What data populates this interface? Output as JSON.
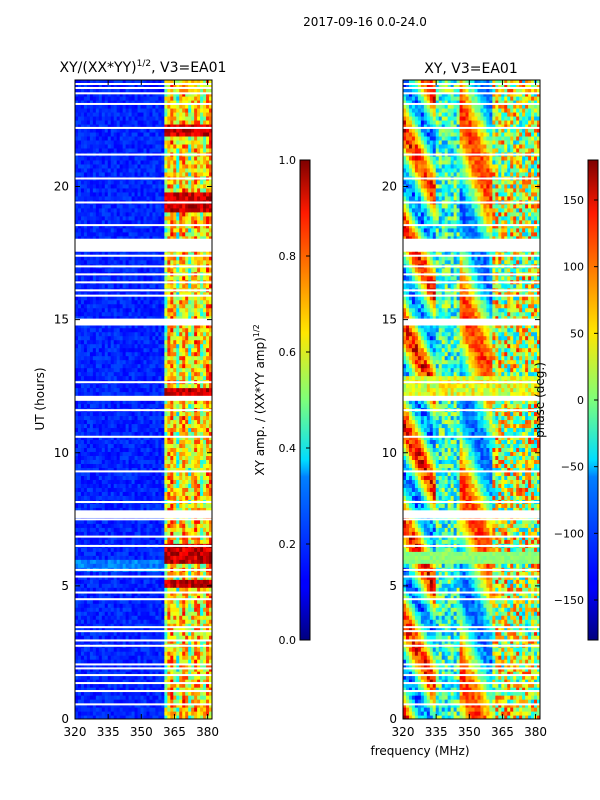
{
  "figure": {
    "suptitle": "2017-09-16 0.0-24.0",
    "shared_xlabel": "frequency (MHz)"
  },
  "chart_data": [
    {
      "type": "heatmap",
      "id": "amp",
      "title": "XY/(XX*YY)",
      "title_exponent": "1/2",
      "title_suffix": ", V3=EA01",
      "ylabel": "UT (hours)",
      "xlim": [
        320,
        382
      ],
      "ylim": [
        0,
        24
      ],
      "xticks": [
        320,
        335,
        350,
        365,
        380
      ],
      "yticks": [
        0,
        5,
        10,
        15,
        20
      ],
      "colormap": "jet",
      "colorbar": {
        "label": "XY amp. / (XX*YY amp)",
        "label_exponent": "1/2",
        "range": [
          0.0,
          1.0
        ],
        "ticks": [
          "0.0",
          "0.2",
          "0.4",
          "0.6",
          "0.8",
          "1.0"
        ]
      },
      "description_values": {
        "background_level": 0.12,
        "bright_band_mhz": [
          360,
          381
        ],
        "peak_level": 1.0
      }
    },
    {
      "type": "heatmap",
      "id": "phase",
      "title": "XY, V3=EA01",
      "ylabel": "",
      "xlim": [
        320,
        382
      ],
      "ylim": [
        0,
        24
      ],
      "xticks": [
        320,
        335,
        350,
        365,
        380
      ],
      "yticks": [
        0,
        5,
        10,
        15,
        20
      ],
      "colormap": "jet",
      "colorbar": {
        "label": "phase (deg.)",
        "range": [
          -180,
          180
        ],
        "ticks": [
          "150",
          "100",
          "50",
          "0",
          "−50",
          "−100",
          "−150"
        ]
      }
    }
  ],
  "gaps_hours": [
    0.55,
    1.05,
    1.35,
    1.65,
    1.9,
    2.05,
    2.75,
    2.95,
    3.3,
    3.45,
    4.5,
    4.75,
    5.35,
    5.6,
    6.5,
    6.85,
    7.5,
    7.8,
    8.15,
    9.3,
    10.6,
    11.6,
    12.1,
    12.65,
    14.85,
    15.0,
    15.9,
    16.1,
    16.4,
    16.7,
    17.0,
    17.4,
    17.8,
    18.0,
    18.55,
    19.4,
    20.3,
    21.2,
    22.2,
    23.1,
    23.5,
    23.7,
    23.85
  ],
  "gap_bands_hours": [
    [
      7.55,
      7.8
    ],
    [
      14.78,
      15.02
    ],
    [
      17.55,
      18.0
    ],
    [
      11.95,
      12.1
    ]
  ]
}
